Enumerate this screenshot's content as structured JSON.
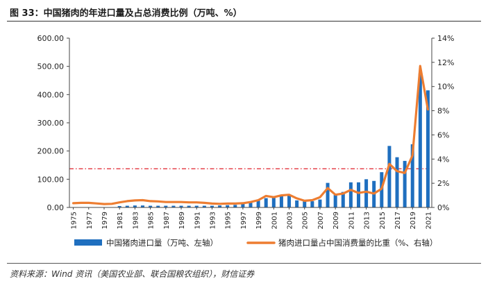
{
  "figure": {
    "title": "图 33：中国猪肉的年进口量及占总消费比例（万吨、%）",
    "source": "资料来源：Wind 资讯（美国农业部、联合国粮农组织），财信证券"
  },
  "colors": {
    "bar": "#1f6fbf",
    "line": "#ed7d31",
    "refline": "#e0202a",
    "axis": "#444444"
  },
  "chart_data": {
    "type": "bar+line",
    "years": [
      1975,
      1976,
      1977,
      1978,
      1979,
      1980,
      1981,
      1982,
      1983,
      1984,
      1985,
      1986,
      1987,
      1988,
      1989,
      1990,
      1991,
      1992,
      1993,
      1994,
      1995,
      1996,
      1997,
      1998,
      1999,
      2000,
      2001,
      2002,
      2003,
      2004,
      2005,
      2006,
      2007,
      2008,
      2009,
      2010,
      2011,
      2012,
      2013,
      2014,
      2015,
      2016,
      2017,
      2018,
      2019,
      2020,
      2021
    ],
    "x_tick_labels": [
      "1975",
      "1977",
      "1979",
      "1981",
      "1983",
      "1985",
      "1987",
      "1989",
      "1991",
      "1993",
      "1995",
      "1997",
      "1999",
      "2001",
      "2003",
      "2005",
      "2007",
      "2009",
      "2011",
      "2013",
      "2015",
      "2017",
      "2019",
      "2021"
    ],
    "series": [
      {
        "name": "中国猪肉进口量（万吨、左轴）",
        "type": "bar",
        "axis": "left",
        "values": [
          0.5,
          0.5,
          0.5,
          0.5,
          0.5,
          0.5,
          5,
          6,
          7,
          7,
          6,
          6,
          6,
          6,
          6,
          6,
          6,
          6,
          6,
          7,
          8,
          9,
          14,
          20,
          24,
          33,
          35,
          41,
          42,
          25,
          21,
          22,
          28,
          87,
          44,
          55,
          89,
          89,
          100,
          94,
          125,
          218,
          178,
          165,
          224,
          475,
          415
        ]
      },
      {
        "name": "猪肉进口量占中国消费量的比重（%、右轴）",
        "type": "line",
        "axis": "right",
        "values": [
          0.35,
          0.38,
          0.38,
          0.33,
          0.28,
          0.3,
          0.42,
          0.52,
          0.58,
          0.6,
          0.52,
          0.5,
          0.45,
          0.45,
          0.45,
          0.42,
          0.42,
          0.38,
          0.32,
          0.3,
          0.32,
          0.32,
          0.35,
          0.45,
          0.6,
          0.95,
          0.85,
          1.0,
          1.05,
          0.75,
          0.55,
          0.6,
          0.85,
          1.6,
          1.05,
          1.15,
          1.45,
          1.2,
          1.3,
          1.15,
          1.55,
          3.6,
          3.0,
          2.85,
          4.3,
          11.7,
          8.1
        ]
      }
    ],
    "y_left": {
      "min": 0,
      "max": 600,
      "ticks": [
        "0.00",
        "100.00",
        "200.00",
        "300.00",
        "400.00",
        "500.00",
        "600.00"
      ]
    },
    "y_right": {
      "min": 0,
      "max": 14,
      "ticks": [
        "0%",
        "2%",
        "4%",
        "6%",
        "8%",
        "10%",
        "12%",
        "14%"
      ]
    },
    "reference_line": {
      "axis": "left",
      "value": 137,
      "style": "dash-dot"
    },
    "legend_position": "bottom"
  }
}
